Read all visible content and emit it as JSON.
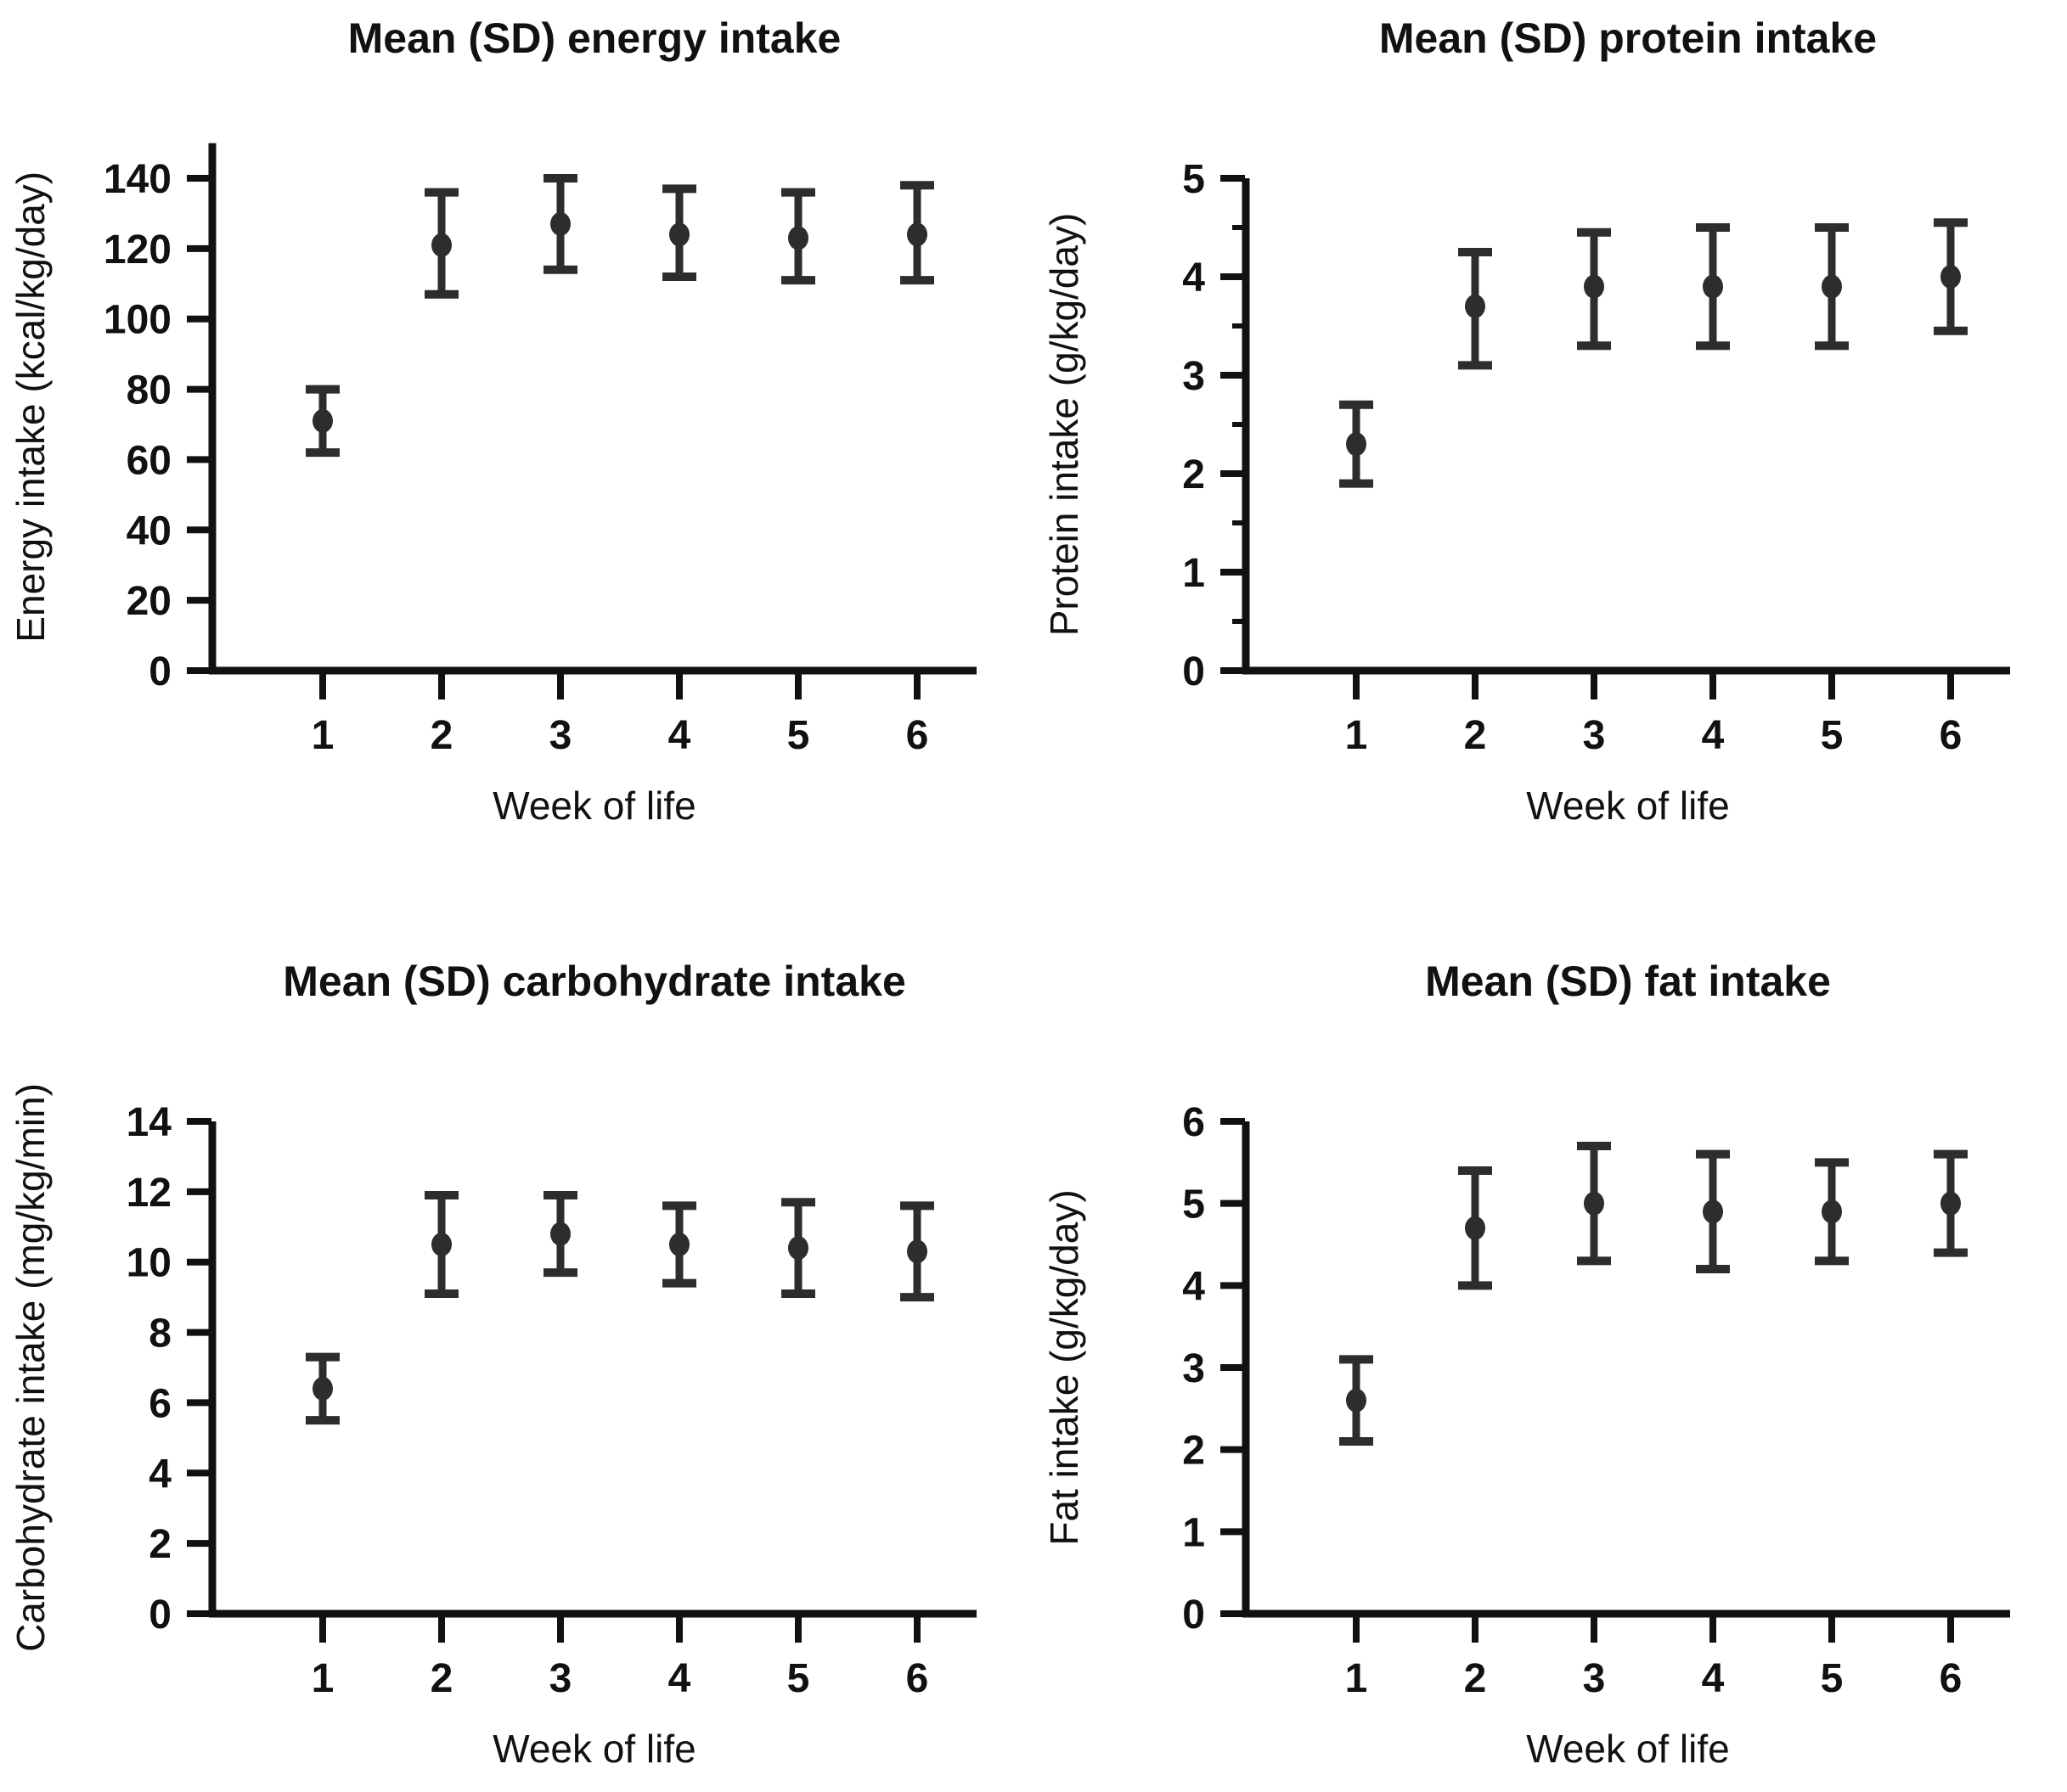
{
  "page": {
    "background": "#ffffff",
    "text_color": "#111111",
    "marker_color": "#2d2d2d"
  },
  "chart_data": [
    {
      "type": "scatter",
      "title": "Mean (SD) energy intake",
      "ylabel": "Energy intake (kcal/kg/day)",
      "xlabel": "Week of life",
      "x": [
        1,
        2,
        3,
        4,
        5,
        6
      ],
      "mean": [
        71,
        121,
        127,
        124,
        123,
        124
      ],
      "lower": [
        62,
        107,
        114,
        112,
        111,
        111
      ],
      "upper": [
        80,
        136,
        140,
        137,
        136,
        138
      ],
      "ylim": [
        0,
        150
      ],
      "yticks": [
        0,
        20,
        40,
        60,
        80,
        100,
        120,
        140
      ],
      "minor_tick_step": 0,
      "grid": false,
      "legend": "none",
      "error_bar_style": "mean with SD caps"
    },
    {
      "type": "scatter",
      "title": "Mean (SD) protein intake",
      "ylabel": "Protein intake (g/kg/day)",
      "xlabel": "Week of life",
      "x": [
        1,
        2,
        3,
        4,
        5,
        6
      ],
      "mean": [
        2.3,
        3.7,
        3.9,
        3.9,
        3.9,
        4.0
      ],
      "lower": [
        1.9,
        3.1,
        3.3,
        3.3,
        3.3,
        3.45
      ],
      "upper": [
        2.7,
        4.25,
        4.45,
        4.5,
        4.5,
        4.55
      ],
      "ylim": [
        0,
        5
      ],
      "yticks": [
        0,
        1,
        2,
        3,
        4,
        5
      ],
      "minor_tick_step": 0.5,
      "grid": false,
      "legend": "none",
      "error_bar_style": "mean with SD caps"
    },
    {
      "type": "scatter",
      "title": "Mean (SD) carbohydrate intake",
      "ylabel": "Carbohydrate intake (mg/kg/min)",
      "xlabel": "Week of life",
      "x": [
        1,
        2,
        3,
        4,
        5,
        6
      ],
      "mean": [
        6.4,
        10.5,
        10.8,
        10.5,
        10.4,
        10.3
      ],
      "lower": [
        5.5,
        9.1,
        9.7,
        9.4,
        9.1,
        9.0
      ],
      "upper": [
        7.3,
        11.9,
        11.9,
        11.6,
        11.7,
        11.6
      ],
      "ylim": [
        0,
        14
      ],
      "yticks": [
        0,
        2,
        4,
        6,
        8,
        10,
        12,
        14
      ],
      "minor_tick_step": 0,
      "grid": false,
      "legend": "none",
      "error_bar_style": "mean with SD caps"
    },
    {
      "type": "scatter",
      "title": "Mean (SD) fat intake",
      "ylabel": "Fat intake (g/kg/day)",
      "xlabel": "Week of life",
      "x": [
        1,
        2,
        3,
        4,
        5,
        6
      ],
      "mean": [
        2.6,
        4.7,
        5.0,
        4.9,
        4.9,
        5.0
      ],
      "lower": [
        2.1,
        4.0,
        4.3,
        4.2,
        4.3,
        4.4
      ],
      "upper": [
        3.1,
        5.4,
        5.7,
        5.6,
        5.5,
        5.6
      ],
      "ylim": [
        0,
        6
      ],
      "yticks": [
        0,
        1,
        2,
        3,
        4,
        5,
        6
      ],
      "minor_tick_step": 0,
      "grid": false,
      "legend": "none",
      "error_bar_style": "mean with SD caps"
    }
  ]
}
